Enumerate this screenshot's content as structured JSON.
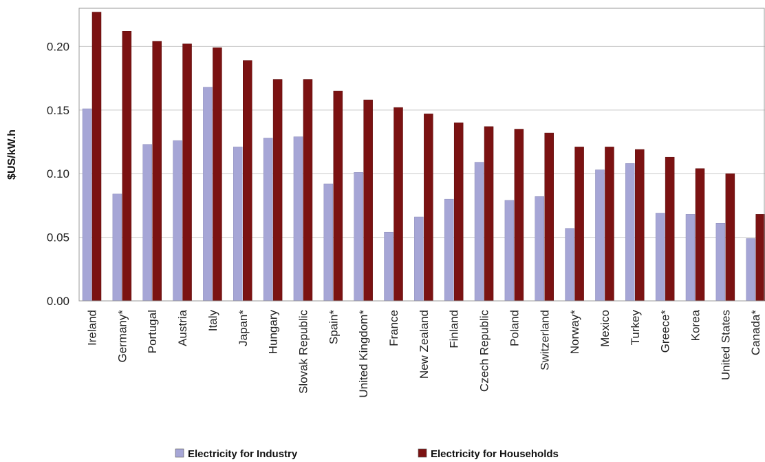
{
  "chart_data": {
    "type": "bar",
    "xlabel": "",
    "ylabel": "$US/kW.h",
    "ylim": [
      0,
      0.23
    ],
    "yticks": [
      "0.00",
      "0.05",
      "0.10",
      "0.15",
      "0.20"
    ],
    "grid": true,
    "legend_position": "bottom",
    "categories": [
      "Ireland",
      "Germany*",
      "Portugal",
      "Austria",
      "Italy",
      "Japan*",
      "Hungary",
      "Slovak Republic",
      "Spain*",
      "United Kingdom*",
      "France",
      "New Zealand",
      "Finland",
      "Czech Republic",
      "Poland",
      "Switzerland",
      "Norway*",
      "Mexico",
      "Turkey",
      "Greece*",
      "Korea",
      "United States",
      "Canada*"
    ],
    "series": [
      {
        "name": "Electricity for Industry",
        "color": "#a6a6d6",
        "values": [
          0.151,
          0.084,
          0.123,
          0.126,
          0.168,
          0.121,
          0.128,
          0.129,
          0.092,
          0.101,
          0.054,
          0.066,
          0.08,
          0.109,
          0.079,
          0.082,
          0.057,
          0.103,
          0.108,
          0.069,
          0.068,
          0.061,
          0.049
        ]
      },
      {
        "name": "Electricity for Households",
        "color": "#7b1212",
        "values": [
          0.227,
          0.212,
          0.204,
          0.202,
          0.199,
          0.189,
          0.174,
          0.174,
          0.165,
          0.158,
          0.152,
          0.147,
          0.14,
          0.137,
          0.135,
          0.132,
          0.121,
          0.121,
          0.119,
          0.113,
          0.104,
          0.1,
          0.068
        ]
      }
    ]
  }
}
